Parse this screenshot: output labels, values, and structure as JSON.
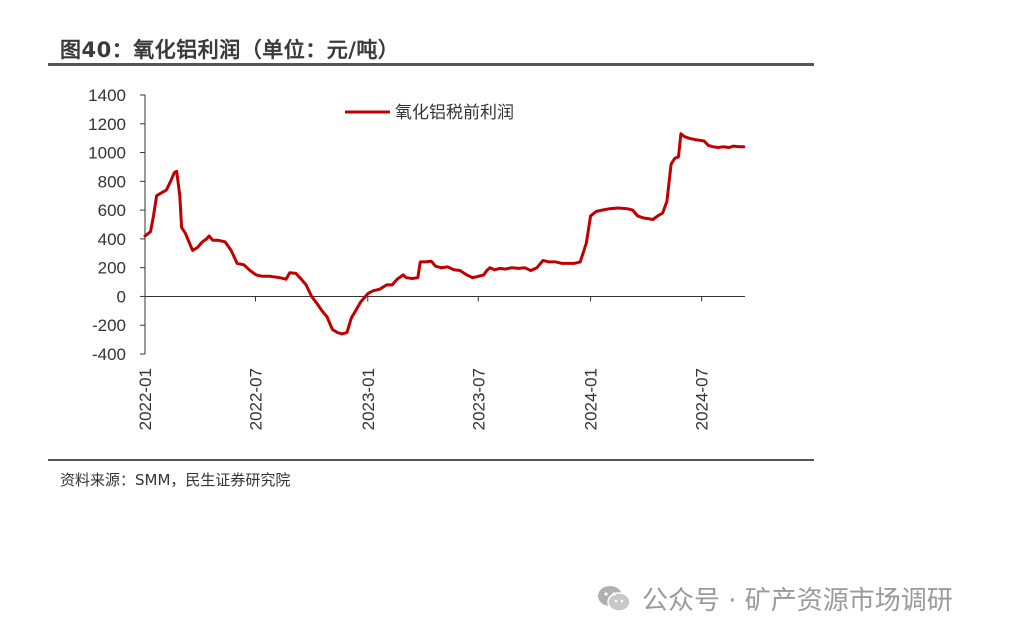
{
  "header": {
    "title": "图40：氧化铝利润（单位：元/吨）"
  },
  "footer": {
    "source": "资料来源：SMM，民生证券研究院"
  },
  "watermark": {
    "text": "公众号 · 矿产资源市场调研",
    "icon": "wechat-icon"
  },
  "colors": {
    "series": "#c00000",
    "axis": "#333333",
    "rule": "#555555"
  },
  "chart_data": {
    "type": "line",
    "title": "",
    "xlabel": "",
    "ylabel": "",
    "ylim": [
      -400,
      1400
    ],
    "yticks": [
      1400,
      1200,
      1000,
      800,
      600,
      400,
      200,
      0,
      -200,
      -400
    ],
    "xlim": [
      "2022-01-01",
      "2024-09-10"
    ],
    "xticks": [
      "2022-01",
      "2022-07",
      "2023-01",
      "2023-07",
      "2024-01",
      "2024-07"
    ],
    "legend": "top-center",
    "grid": false,
    "series": [
      {
        "name": "氧化铝税前利润",
        "color": "#c00000",
        "points": [
          [
            "2022-01-01",
            420
          ],
          [
            "2022-01-10",
            450
          ],
          [
            "2022-01-15",
            560
          ],
          [
            "2022-01-20",
            700
          ],
          [
            "2022-01-28",
            720
          ],
          [
            "2022-02-05",
            740
          ],
          [
            "2022-02-12",
            800
          ],
          [
            "2022-02-18",
            860
          ],
          [
            "2022-02-22",
            870
          ],
          [
            "2022-02-27",
            700
          ],
          [
            "2022-03-02",
            480
          ],
          [
            "2022-03-08",
            440
          ],
          [
            "2022-03-14",
            380
          ],
          [
            "2022-03-20",
            320
          ],
          [
            "2022-03-28",
            340
          ],
          [
            "2022-04-05",
            380
          ],
          [
            "2022-04-12",
            400
          ],
          [
            "2022-04-16",
            420
          ],
          [
            "2022-04-22",
            390
          ],
          [
            "2022-05-01",
            390
          ],
          [
            "2022-05-12",
            380
          ],
          [
            "2022-05-22",
            320
          ],
          [
            "2022-06-01",
            230
          ],
          [
            "2022-06-12",
            220
          ],
          [
            "2022-06-22",
            180
          ],
          [
            "2022-07-02",
            150
          ],
          [
            "2022-07-12",
            140
          ],
          [
            "2022-07-25",
            140
          ],
          [
            "2022-08-10",
            130
          ],
          [
            "2022-08-20",
            120
          ],
          [
            "2022-08-26",
            165
          ],
          [
            "2022-09-05",
            160
          ],
          [
            "2022-09-14",
            120
          ],
          [
            "2022-09-22",
            80
          ],
          [
            "2022-10-01",
            0
          ],
          [
            "2022-10-10",
            -50
          ],
          [
            "2022-10-18",
            -100
          ],
          [
            "2022-10-26",
            -140
          ],
          [
            "2022-11-04",
            -230
          ],
          [
            "2022-11-12",
            -250
          ],
          [
            "2022-11-20",
            -260
          ],
          [
            "2022-11-28",
            -250
          ],
          [
            "2022-12-05",
            -150
          ],
          [
            "2022-12-12",
            -100
          ],
          [
            "2022-12-20",
            -40
          ],
          [
            "2023-01-01",
            20
          ],
          [
            "2023-01-10",
            40
          ],
          [
            "2023-01-20",
            50
          ],
          [
            "2023-02-01",
            80
          ],
          [
            "2023-02-10",
            80
          ],
          [
            "2023-02-18",
            120
          ],
          [
            "2023-02-28",
            150
          ],
          [
            "2023-03-05",
            130
          ],
          [
            "2023-03-15",
            125
          ],
          [
            "2023-03-24",
            130
          ],
          [
            "2023-03-28",
            240
          ],
          [
            "2023-04-05",
            240
          ],
          [
            "2023-04-15",
            245
          ],
          [
            "2023-04-22",
            210
          ],
          [
            "2023-05-01",
            200
          ],
          [
            "2023-05-12",
            205
          ],
          [
            "2023-05-22",
            185
          ],
          [
            "2023-06-01",
            180
          ],
          [
            "2023-06-12",
            150
          ],
          [
            "2023-06-22",
            130
          ],
          [
            "2023-07-01",
            140
          ],
          [
            "2023-07-10",
            150
          ],
          [
            "2023-07-15",
            180
          ],
          [
            "2023-07-20",
            200
          ],
          [
            "2023-07-28",
            185
          ],
          [
            "2023-08-05",
            195
          ],
          [
            "2023-08-15",
            190
          ],
          [
            "2023-08-25",
            200
          ],
          [
            "2023-09-05",
            195
          ],
          [
            "2023-09-15",
            200
          ],
          [
            "2023-09-25",
            180
          ],
          [
            "2023-10-05",
            200
          ],
          [
            "2023-10-15",
            250
          ],
          [
            "2023-10-25",
            240
          ],
          [
            "2023-11-05",
            240
          ],
          [
            "2023-11-15",
            230
          ],
          [
            "2023-11-25",
            230
          ],
          [
            "2023-12-05",
            230
          ],
          [
            "2023-12-15",
            240
          ],
          [
            "2023-12-25",
            370
          ],
          [
            "2024-01-01",
            560
          ],
          [
            "2024-01-10",
            590
          ],
          [
            "2024-01-20",
            600
          ],
          [
            "2024-02-01",
            610
          ],
          [
            "2024-02-15",
            615
          ],
          [
            "2024-03-01",
            610
          ],
          [
            "2024-03-10",
            600
          ],
          [
            "2024-03-18",
            560
          ],
          [
            "2024-03-28",
            545
          ],
          [
            "2024-04-05",
            540
          ],
          [
            "2024-04-12",
            535
          ],
          [
            "2024-04-20",
            560
          ],
          [
            "2024-04-28",
            580
          ],
          [
            "2024-05-05",
            660
          ],
          [
            "2024-05-12",
            920
          ],
          [
            "2024-05-18",
            960
          ],
          [
            "2024-05-24",
            970
          ],
          [
            "2024-05-28",
            1130
          ],
          [
            "2024-06-03",
            1110
          ],
          [
            "2024-06-10",
            1100
          ],
          [
            "2024-06-20",
            1090
          ],
          [
            "2024-06-28",
            1085
          ],
          [
            "2024-07-05",
            1080
          ],
          [
            "2024-07-12",
            1050
          ],
          [
            "2024-07-20",
            1040
          ],
          [
            "2024-07-28",
            1035
          ],
          [
            "2024-08-05",
            1040
          ],
          [
            "2024-08-15",
            1035
          ],
          [
            "2024-08-22",
            1045
          ],
          [
            "2024-09-01",
            1040
          ],
          [
            "2024-09-08",
            1040
          ]
        ]
      }
    ]
  }
}
